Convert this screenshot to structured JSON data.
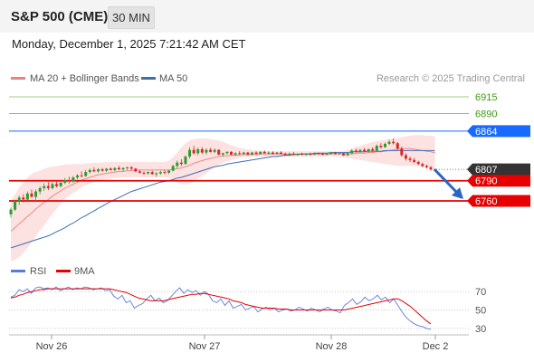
{
  "header": {
    "title": "S&P 500 (CME)",
    "timeframe": "30 MIN"
  },
  "datetime": "Monday, December 1, 2025 7:21:42 AM CET",
  "legend": {
    "ma_bb": "MA 20 + Bollinger Bands",
    "ma50": "MA 50"
  },
  "copyright": "Research © 2025 Trading Central",
  "colors": {
    "res_green": "#3f9b12",
    "level_blue": "#1769ff",
    "level_red": "#e60000",
    "price_dark": "#333333",
    "bull": "#2e9b2e",
    "bear": "#d82727",
    "ma20": "#ee8888",
    "ma50": "#3c6eb4",
    "bb_fill": "#fcd5d5",
    "rsi": "#5a7bd8",
    "rsi_ma": "#e60000",
    "arrow": "#2a65c2"
  },
  "chart_data": [
    {
      "type": "candlestick",
      "y_scale": {
        "top": 6915,
        "bottom": 6760
      },
      "levels": [
        {
          "value": 6915,
          "label": "6915",
          "kind": "resistance"
        },
        {
          "value": 6890,
          "label": "6890",
          "kind": "resistance"
        },
        {
          "value": 6864,
          "label": "6864",
          "kind": "pivot"
        },
        {
          "value": 6807,
          "label": "6807",
          "kind": "last"
        },
        {
          "value": 6790,
          "label": "6790",
          "kind": "support"
        },
        {
          "value": 6760,
          "label": "6760",
          "kind": "support"
        }
      ],
      "x_tick_labels": [
        "Nov 26",
        "Nov 27",
        "Nov 28",
        "Dec 2"
      ],
      "candles": [
        [
          6740,
          6750,
          6735,
          6747
        ],
        [
          6747,
          6762,
          6745,
          6760
        ],
        [
          6760,
          6768,
          6754,
          6765
        ],
        [
          6765,
          6770,
          6758,
          6762
        ],
        [
          6762,
          6774,
          6760,
          6771
        ],
        [
          6771,
          6777,
          6765,
          6766
        ],
        [
          6766,
          6777,
          6760,
          6774
        ],
        [
          6774,
          6782,
          6770,
          6779
        ],
        [
          6779,
          6786,
          6775,
          6782
        ],
        [
          6782,
          6788,
          6776,
          6779
        ],
        [
          6779,
          6788,
          6777,
          6785
        ],
        [
          6785,
          6790,
          6780,
          6782
        ],
        [
          6782,
          6790,
          6780,
          6787
        ],
        [
          6787,
          6794,
          6785,
          6791
        ],
        [
          6791,
          6796,
          6786,
          6789
        ],
        [
          6789,
          6797,
          6787,
          6795
        ],
        [
          6795,
          6800,
          6792,
          6798
        ],
        [
          6798,
          6804,
          6795,
          6797
        ],
        [
          6797,
          6806,
          6796,
          6803
        ],
        [
          6803,
          6808,
          6801,
          6806
        ],
        [
          6806,
          6810,
          6803,
          6804
        ],
        [
          6804,
          6809,
          6802,
          6807
        ],
        [
          6807,
          6809,
          6804,
          6805
        ],
        [
          6805,
          6809,
          6803,
          6808
        ],
        [
          6808,
          6810,
          6805,
          6806
        ],
        [
          6806,
          6810,
          6804,
          6809
        ],
        [
          6809,
          6812,
          6806,
          6807
        ],
        [
          6807,
          6810,
          6804,
          6809
        ],
        [
          6809,
          6811,
          6806,
          6810
        ],
        [
          6810,
          6812,
          6806,
          6808
        ],
        [
          6808,
          6809,
          6803,
          6804
        ],
        [
          6804,
          6806,
          6801,
          6802
        ],
        [
          6802,
          6804,
          6799,
          6801
        ],
        [
          6801,
          6804,
          6799,
          6803
        ],
        [
          6803,
          6805,
          6799,
          6800
        ],
        [
          6800,
          6803,
          6796,
          6801
        ],
        [
          6801,
          6805,
          6799,
          6803
        ],
        [
          6803,
          6806,
          6800,
          6802
        ],
        [
          6802,
          6806,
          6800,
          6805
        ],
        [
          6805,
          6814,
          6804,
          6812
        ],
        [
          6812,
          6820,
          6809,
          6817
        ],
        [
          6817,
          6822,
          6812,
          6815
        ],
        [
          6815,
          6828,
          6814,
          6826
        ],
        [
          6826,
          6840,
          6823,
          6836
        ],
        [
          6836,
          6842,
          6829,
          6831
        ],
        [
          6831,
          6839,
          6828,
          6837
        ],
        [
          6837,
          6840,
          6830,
          6832
        ],
        [
          6832,
          6838,
          6829,
          6836
        ],
        [
          6836,
          6839,
          6832,
          6833
        ],
        [
          6833,
          6838,
          6831,
          6836
        ],
        [
          6836,
          6837,
          6828,
          6829
        ],
        [
          6829,
          6832,
          6826,
          6831
        ],
        [
          6831,
          6834,
          6829,
          6833
        ],
        [
          6833,
          6834,
          6828,
          6829
        ],
        [
          6829,
          6833,
          6827,
          6831
        ],
        [
          6831,
          6834,
          6829,
          6830
        ],
        [
          6830,
          6833,
          6828,
          6832
        ],
        [
          6832,
          6833,
          6828,
          6829
        ],
        [
          6829,
          6833,
          6828,
          6832
        ],
        [
          6832,
          6834,
          6829,
          6830
        ],
        [
          6830,
          6834,
          6829,
          6833
        ],
        [
          6833,
          6835,
          6830,
          6831
        ],
        [
          6831,
          6834,
          6829,
          6832
        ],
        [
          6832,
          6834,
          6829,
          6830
        ],
        [
          6830,
          6833,
          6829,
          6832
        ],
        [
          6832,
          6834,
          6829,
          6830
        ],
        [
          6830,
          6832,
          6827,
          6828
        ],
        [
          6828,
          6832,
          6827,
          6830
        ],
        [
          6830,
          6833,
          6828,
          6829
        ],
        [
          6829,
          6831,
          6827,
          6830
        ],
        [
          6830,
          6832,
          6828,
          6829
        ],
        [
          6829,
          6831,
          6827,
          6830
        ],
        [
          6830,
          6832,
          6828,
          6829
        ],
        [
          6829,
          6832,
          6828,
          6831
        ],
        [
          6831,
          6832,
          6829,
          6830
        ],
        [
          6830,
          6832,
          6828,
          6829
        ],
        [
          6829,
          6831,
          6828,
          6830
        ],
        [
          6830,
          6833,
          6829,
          6832
        ],
        [
          6832,
          6833,
          6829,
          6830
        ],
        [
          6830,
          6832,
          6829,
          6831
        ],
        [
          6831,
          6832,
          6827,
          6828
        ],
        [
          6828,
          6832,
          6827,
          6831
        ],
        [
          6831,
          6837,
          6830,
          6835
        ],
        [
          6835,
          6838,
          6832,
          6833
        ],
        [
          6833,
          6837,
          6832,
          6836
        ],
        [
          6836,
          6839,
          6833,
          6834
        ],
        [
          6834,
          6838,
          6832,
          6837
        ],
        [
          6837,
          6840,
          6833,
          6835
        ],
        [
          6835,
          6844,
          6834,
          6842
        ],
        [
          6842,
          6846,
          6838,
          6840
        ],
        [
          6840,
          6847,
          6839,
          6845
        ],
        [
          6845,
          6851,
          6843,
          6848
        ],
        [
          6848,
          6853,
          6844,
          6846
        ],
        [
          6846,
          6848,
          6836,
          6838
        ],
        [
          6838,
          6841,
          6826,
          6828
        ],
        [
          6828,
          6831,
          6820,
          6823
        ],
        [
          6823,
          6826,
          6818,
          6821
        ],
        [
          6821,
          6824,
          6816,
          6818
        ],
        [
          6818,
          6820,
          6813,
          6815
        ],
        [
          6815,
          6817,
          6810,
          6812
        ],
        [
          6812,
          6814,
          6808,
          6810
        ],
        [
          6810,
          6812,
          6805,
          6807
        ]
      ],
      "ma20": [
        6715,
        6720,
        6726,
        6731,
        6737,
        6742,
        6748,
        6753,
        6758,
        6762,
        6767,
        6771,
        6775,
        6779,
        6782,
        6785,
        6788,
        6791,
        6793,
        6795,
        6797,
        6799,
        6800,
        6801,
        6802,
        6803,
        6804,
        6804,
        6805,
        6805,
        6806,
        6806,
        6806,
        6806,
        6806,
        6806,
        6806,
        6806,
        6806,
        6807,
        6808,
        6809,
        6811,
        6813,
        6816,
        6818,
        6820,
        6822,
        6823,
        6825,
        6826,
        6827,
        6827,
        6828,
        6828,
        6828,
        6829,
        6829,
        6829,
        6829,
        6830,
        6830,
        6830,
        6830,
        6830,
        6830,
        6830,
        6830,
        6830,
        6830,
        6830,
        6830,
        6830,
        6830,
        6830,
        6830,
        6830,
        6830,
        6830,
        6830,
        6830,
        6830,
        6830,
        6831,
        6831,
        6831,
        6832,
        6832,
        6833,
        6833,
        6834,
        6835,
        6836,
        6837,
        6838,
        6838,
        6838,
        6837,
        6836,
        6835,
        6834,
        6833,
        6832
      ],
      "bb_upper": [
        6760,
        6770,
        6780,
        6788,
        6795,
        6800,
        6803,
        6805,
        6808,
        6810,
        6811,
        6812,
        6813,
        6814,
        6814,
        6815,
        6815,
        6815,
        6816,
        6816,
        6817,
        6817,
        6817,
        6818,
        6818,
        6818,
        6818,
        6818,
        6818,
        6818,
        6818,
        6818,
        6818,
        6818,
        6818,
        6818,
        6818,
        6818,
        6820,
        6825,
        6832,
        6840,
        6846,
        6850,
        6852,
        6853,
        6853,
        6853,
        6852,
        6851,
        6850,
        6848,
        6846,
        6843,
        6841,
        6839,
        6838,
        6837,
        6836,
        6835,
        6835,
        6835,
        6834,
        6834,
        6834,
        6834,
        6834,
        6834,
        6834,
        6834,
        6834,
        6834,
        6834,
        6834,
        6834,
        6834,
        6834,
        6834,
        6834,
        6834,
        6835,
        6836,
        6838,
        6840,
        6842,
        6844,
        6846,
        6848,
        6849,
        6850,
        6851,
        6852,
        6853,
        6854,
        6855,
        6856,
        6857,
        6858,
        6858,
        6858,
        6857,
        6857,
        6856
      ],
      "bb_lower": [
        6670,
        6672,
        6676,
        6682,
        6690,
        6698,
        6707,
        6716,
        6724,
        6732,
        6740,
        6748,
        6755,
        6762,
        6768,
        6772,
        6776,
        6780,
        6783,
        6786,
        6788,
        6790,
        6791,
        6792,
        6793,
        6794,
        6794,
        6795,
        6795,
        6795,
        6795,
        6795,
        6795,
        6795,
        6795,
        6795,
        6795,
        6795,
        6794,
        6791,
        6788,
        6785,
        6785,
        6786,
        6789,
        6793,
        6797,
        6801,
        6806,
        6810,
        6814,
        6817,
        6819,
        6821,
        6823,
        6824,
        6825,
        6825,
        6826,
        6826,
        6826,
        6826,
        6826,
        6826,
        6826,
        6826,
        6826,
        6826,
        6826,
        6826,
        6826,
        6826,
        6826,
        6826,
        6826,
        6826,
        6826,
        6826,
        6826,
        6826,
        6825,
        6824,
        6823,
        6822,
        6821,
        6820,
        6819,
        6818,
        6817,
        6816,
        6815,
        6814,
        6813,
        6812,
        6812,
        6812,
        6812,
        6812,
        6812,
        6811,
        6810,
        6809,
        6808
      ],
      "ma50": [
        6690,
        6692,
        6694,
        6696,
        6698,
        6700,
        6702,
        6704,
        6706,
        6708,
        6711,
        6714,
        6717,
        6720,
        6724,
        6727,
        6731,
        6735,
        6738,
        6742,
        6745,
        6749,
        6752,
        6756,
        6759,
        6762,
        6765,
        6768,
        6771,
        6774,
        6776,
        6778,
        6780,
        6782,
        6784,
        6786,
        6788,
        6789,
        6790,
        6792,
        6794,
        6795,
        6797,
        6799,
        6801,
        6803,
        6805,
        6807,
        6809,
        6811,
        6812,
        6813,
        6815,
        6816,
        6817,
        6818,
        6819,
        6820,
        6821,
        6822,
        6823,
        6824,
        6825,
        6826,
        6826,
        6827,
        6828,
        6828,
        6829,
        6829,
        6830,
        6830,
        6830,
        6831,
        6831,
        6831,
        6831,
        6832,
        6832,
        6832,
        6832,
        6832,
        6833,
        6833,
        6833,
        6833,
        6834,
        6834,
        6834,
        6834,
        6835,
        6835,
        6835,
        6835,
        6835,
        6835,
        6835,
        6835,
        6835,
        6835,
        6835,
        6835,
        6835
      ],
      "projection": {
        "from": 6807,
        "to": 6760
      }
    },
    {
      "type": "line",
      "legend": [
        "RSI",
        "9MA"
      ],
      "y_ticks": [
        70,
        50,
        30
      ],
      "y_range": [
        25,
        80
      ],
      "series": [
        {
          "name": "RSI",
          "values": [
            64,
            66,
            72,
            70,
            73,
            68,
            74,
            75,
            73,
            74,
            72,
            75,
            71,
            73,
            75,
            72,
            74,
            73,
            75,
            74,
            72,
            73,
            74,
            71,
            72,
            65,
            62,
            66,
            58,
            60,
            52,
            55,
            57,
            62,
            66,
            60,
            63,
            58,
            60,
            65,
            70,
            74,
            68,
            72,
            69,
            71,
            66,
            70,
            67,
            60,
            58,
            62,
            55,
            60,
            52,
            54,
            56,
            50,
            52,
            54,
            48,
            51,
            53,
            50,
            52,
            48,
            50,
            51,
            49,
            50,
            53,
            51,
            49,
            52,
            50,
            48,
            51,
            53,
            50,
            49,
            47,
            55,
            58,
            62,
            56,
            59,
            64,
            60,
            62,
            66,
            61,
            64,
            58,
            62,
            55,
            48,
            42,
            38,
            35,
            33,
            32,
            30,
            29
          ]
        },
        {
          "name": "9MA",
          "values": [
            63,
            64,
            66,
            67,
            69,
            70,
            71,
            72,
            72,
            73,
            73,
            73,
            73,
            73,
            73,
            73,
            73,
            73,
            73,
            73,
            73,
            73,
            73,
            73,
            73,
            72,
            71,
            70,
            69,
            67,
            65,
            63,
            62,
            61,
            60,
            60,
            60,
            60,
            61,
            62,
            63,
            64,
            65,
            66,
            67,
            67,
            68,
            68,
            67,
            66,
            65,
            64,
            63,
            62,
            60,
            59,
            58,
            56,
            55,
            54,
            53,
            52,
            52,
            52,
            52,
            51,
            51,
            51,
            50,
            50,
            50,
            50,
            50,
            50,
            50,
            50,
            50,
            50,
            50,
            50,
            50,
            50,
            51,
            52,
            53,
            54,
            55,
            56,
            57,
            58,
            59,
            60,
            61,
            62,
            62,
            60,
            57,
            54,
            50,
            46,
            42,
            38,
            35
          ]
        }
      ]
    }
  ]
}
